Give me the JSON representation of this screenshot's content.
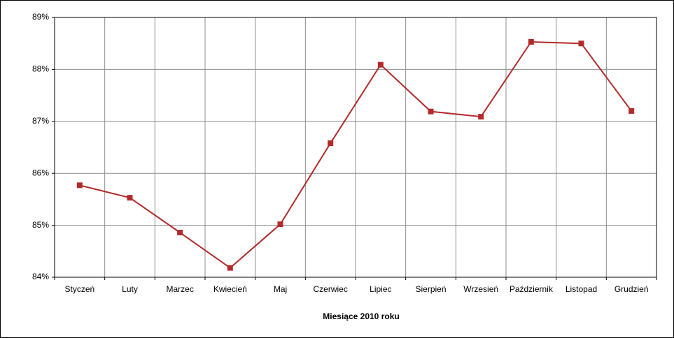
{
  "chart_data": {
    "type": "line",
    "x_label": "Miesiące 2010  roku",
    "categories": [
      "Styczeń",
      "Luty",
      "Marzec",
      "Kwiecień",
      "Maj",
      "Czerwiec",
      "Lipiec",
      "Sierpień",
      "Wrzesień",
      "Październik",
      "Listopad",
      "Grudzień"
    ],
    "values": [
      85.77,
      85.53,
      84.86,
      84.18,
      85.02,
      86.58,
      88.09,
      87.19,
      87.09,
      88.53,
      88.5,
      87.2
    ],
    "color": "#b22a2a",
    "ylim": [
      84,
      89
    ],
    "yticks": [
      {
        "value": 84,
        "label": "84%"
      },
      {
        "value": 85,
        "label": "85%"
      },
      {
        "value": 86,
        "label": "86%"
      },
      {
        "value": 87,
        "label": "87%"
      },
      {
        "value": 88,
        "label": "88%"
      },
      {
        "value": 89,
        "label": "89%"
      }
    ],
    "grid": true
  }
}
